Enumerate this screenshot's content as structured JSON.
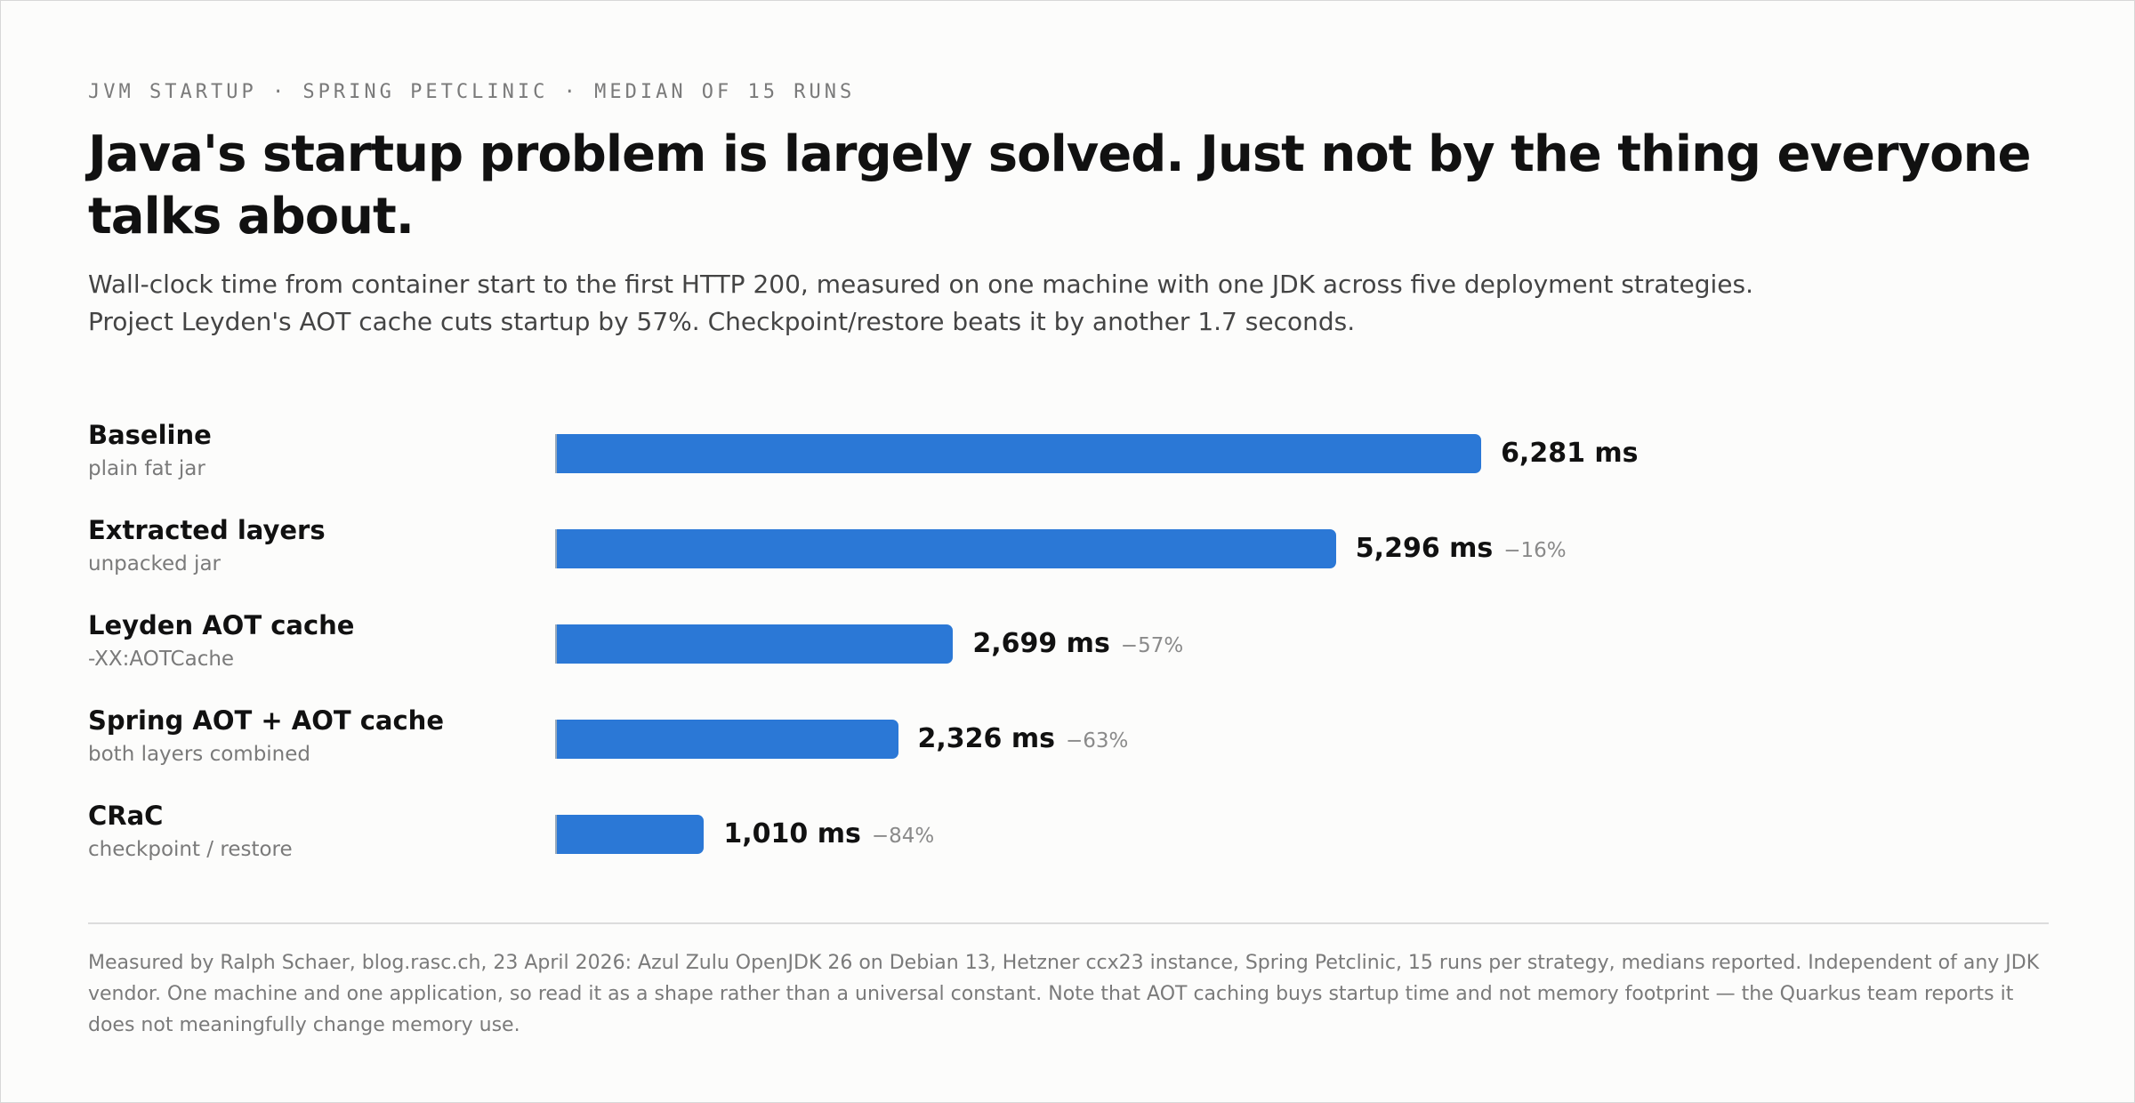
{
  "eyebrow": "JVM STARTUP · SPRING PETCLINIC · MEDIAN OF 15 RUNS",
  "chart_data": {
    "type": "bar",
    "orientation": "horizontal",
    "title": "Java's startup problem is largely solved. Just not by the thing everyone talks about.",
    "subtitle": [
      "Wall-clock time from container start to the first HTTP 200, measured on one machine with one JDK across five deployment strategies.",
      "Project Leyden's AOT cache cuts startup by 57%. Checkpoint/restore beats it by another 1.7 seconds."
    ],
    "categories": [
      "Baseline",
      "Extracted layers",
      "Leyden AOT cache",
      "Spring AOT + AOT cache",
      "CRaC"
    ],
    "sublabels": [
      "plain fat jar",
      "unpacked jar",
      "-XX:AOTCache",
      "both layers combined",
      "checkpoint / restore"
    ],
    "values": [
      6281,
      5296,
      2699,
      2326,
      1010
    ],
    "value_labels": [
      "6,281 ms",
      "5,296 ms",
      "2,699 ms",
      "2,326 ms",
      "1,010 ms"
    ],
    "changes": [
      null,
      -16,
      -57,
      -63,
      -84
    ],
    "change_labels": [
      null,
      "−16%",
      "−57%",
      "−63%",
      "−84%"
    ],
    "color": "#2b78d6",
    "xlim": [
      0,
      8000
    ]
  },
  "footnote": "Measured by Ralph Schaer, blog.rasc.ch, 23 April 2026: Azul Zulu OpenJDK 26 on Debian 13, Hetzner ccx23 instance, Spring Petclinic, 15 runs per strategy, medians reported. Independent of any JDK vendor. One machine and one application, so read it as a shape rather than a universal constant. Note that AOT caching buys startup time and not memory footprint — the Quarkus team reports it does not meaningfully change memory use."
}
